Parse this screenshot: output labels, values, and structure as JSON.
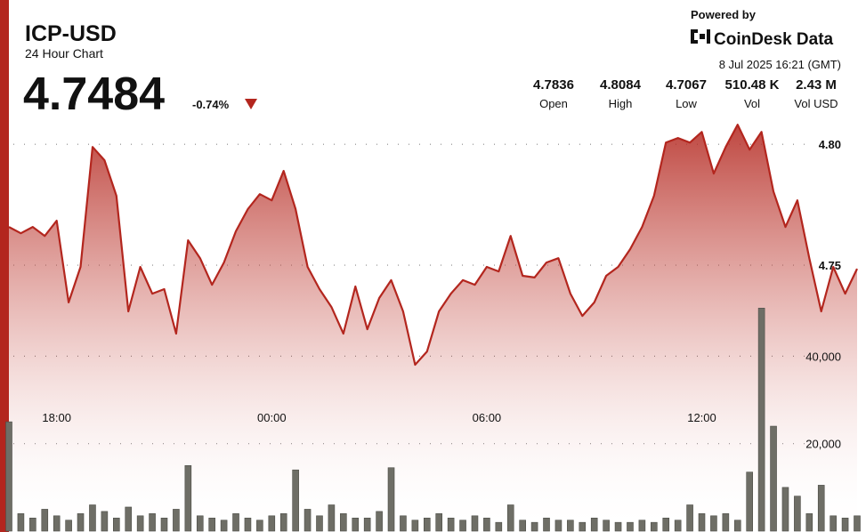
{
  "header": {
    "symbol": "ICP-USD",
    "subtitle": "24 Hour Chart",
    "price": "4.7484",
    "change": "-0.74%",
    "powered_by": "Powered by",
    "brand": "CoinDesk Data",
    "timestamp": "8 Jul 2025 16:21 (GMT)"
  },
  "stats": [
    {
      "value": "4.7836",
      "label": "Open"
    },
    {
      "value": "4.8084",
      "label": "High"
    },
    {
      "value": "4.7067",
      "label": "Low"
    },
    {
      "value": "510.48 K",
      "label": "Vol"
    },
    {
      "value": "2.43 M",
      "label": "Vol USD"
    }
  ],
  "chart_data": {
    "type": "line",
    "x": [
      "16:40",
      "17:00",
      "17:20",
      "17:40",
      "18:00",
      "18:20",
      "18:40",
      "19:00",
      "19:20",
      "19:40",
      "20:00",
      "20:20",
      "20:40",
      "21:00",
      "21:20",
      "21:40",
      "22:00",
      "22:20",
      "22:40",
      "23:00",
      "23:20",
      "23:40",
      "00:00",
      "00:20",
      "00:40",
      "01:00",
      "01:20",
      "01:40",
      "02:00",
      "02:20",
      "02:40",
      "03:00",
      "03:20",
      "03:40",
      "04:00",
      "04:20",
      "04:40",
      "05:00",
      "05:20",
      "05:40",
      "06:00",
      "06:20",
      "06:40",
      "07:00",
      "07:20",
      "07:40",
      "08:00",
      "08:20",
      "08:40",
      "09:00",
      "09:20",
      "09:40",
      "10:00",
      "10:20",
      "10:40",
      "11:00",
      "11:20",
      "11:40",
      "12:00",
      "12:20",
      "12:40",
      "13:00",
      "13:20",
      "13:40",
      "14:00",
      "14:20",
      "14:40",
      "15:00",
      "15:20",
      "15:40",
      "16:00",
      "16:20"
    ],
    "xticks": [
      "18:00",
      "00:00",
      "06:00",
      "12:00"
    ],
    "series": [
      {
        "color": "#b3261e",
        "values": [
          4.7658,
          4.7632,
          4.7658,
          4.7621,
          4.7684,
          4.7346,
          4.7493,
          4.7989,
          4.7934,
          4.7787,
          4.7309,
          4.7493,
          4.7382,
          4.7401,
          4.7217,
          4.7603,
          4.7529,
          4.7419,
          4.7511,
          4.764,
          4.7732,
          4.7794,
          4.7768,
          4.789,
          4.7732,
          4.7493,
          4.7401,
          4.7327,
          4.7217,
          4.7412,
          4.7235,
          4.7364,
          4.7438,
          4.7309,
          4.7088,
          4.7143,
          4.7309,
          4.7382,
          4.7438,
          4.7419,
          4.7493,
          4.7474,
          4.7621,
          4.7456,
          4.7449,
          4.7511,
          4.7529,
          4.7382,
          4.729,
          4.7346,
          4.7456,
          4.7493,
          4.7566,
          4.7658,
          4.7787,
          4.8007,
          4.8026,
          4.8007,
          4.8051,
          4.7879,
          4.7989,
          4.8081,
          4.7978,
          4.8051,
          4.7805,
          4.7658,
          4.7768,
          4.7529,
          4.7309,
          4.7493,
          4.7382,
          4.7485
        ]
      },
      {
        "color": "#6e6e66",
        "type": "bar",
        "axis": "y2",
        "values": [
          25000,
          4000,
          3000,
          5000,
          3500,
          2500,
          4000,
          6000,
          4500,
          3000,
          5500,
          3500,
          4000,
          3000,
          5000,
          15000,
          3500,
          3000,
          2500,
          4000,
          3000,
          2500,
          3500,
          4000,
          14000,
          5000,
          3500,
          6000,
          4000,
          3000,
          3000,
          4500,
          14500,
          3500,
          2500,
          3000,
          4000,
          3000,
          2500,
          3500,
          3000,
          2000,
          6000,
          2500,
          2000,
          3000,
          2500,
          2500,
          2000,
          3000,
          2500,
          2000,
          2000,
          2500,
          2000,
          3000,
          2500,
          6000,
          4000,
          3500,
          4000,
          2500,
          13500,
          51000,
          24000,
          10000,
          8000,
          4000,
          10500,
          3500,
          3000,
          3500
        ]
      }
    ],
    "ylim": [
      4.64,
      4.81
    ],
    "yticks": [
      {
        "value": 4.8,
        "label": "4.80"
      },
      {
        "value": 4.75,
        "label": "4.75"
      }
    ],
    "y2lim": [
      0,
      94000
    ],
    "y2ticks": [
      {
        "value": 40000,
        "label": "40,000"
      },
      {
        "value": 20000,
        "label": "20,000"
      }
    ],
    "grid": true
  }
}
